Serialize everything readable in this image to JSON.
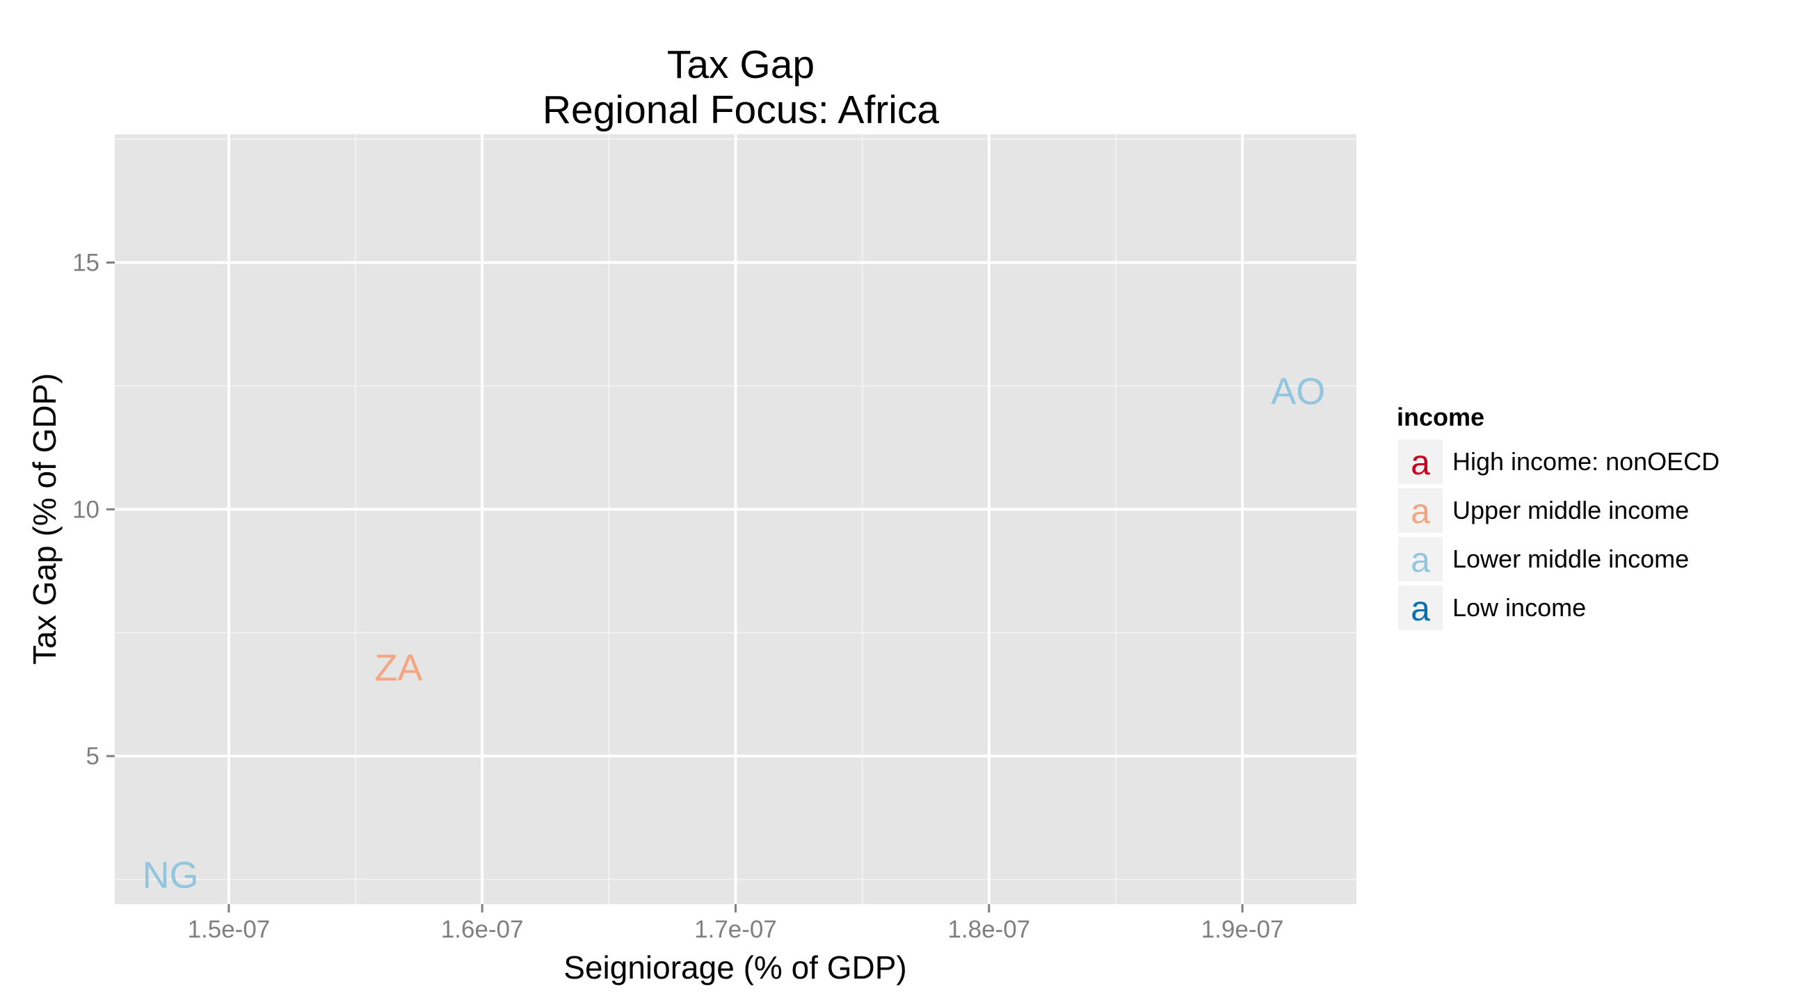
{
  "chart_data": {
    "type": "scatter",
    "title": "Tax Gap",
    "subtitle": "Regional Focus: Africa",
    "xlabel": "Seigniorage (% of GDP)",
    "ylabel": "Tax Gap (% of GDP)",
    "xlim": [
      1.455e-07,
      1.945e-07
    ],
    "ylim": [
      2.0,
      17.6
    ],
    "x_ticks": [
      1.5e-07,
      1.6e-07,
      1.7e-07,
      1.8e-07,
      1.9e-07
    ],
    "x_tick_labels": [
      "1.5e-07",
      "1.6e-07",
      "1.7e-07",
      "1.8e-07",
      "1.9e-07"
    ],
    "y_ticks": [
      5,
      10,
      15
    ],
    "y_tick_labels": [
      "5",
      "10",
      "15"
    ],
    "grid": true,
    "points": [
      {
        "label": "NG",
        "x": 1.477e-07,
        "y": 2.6,
        "income": "Lower middle income"
      },
      {
        "label": "ZA",
        "x": 1.567e-07,
        "y": 6.8,
        "income": "Upper middle income"
      },
      {
        "label": "AO",
        "x": 1.922e-07,
        "y": 12.4,
        "income": "Lower middle income"
      }
    ],
    "legend": {
      "title": "income",
      "position": "right",
      "key_glyph": "a",
      "entries": [
        {
          "name": "High income: nonOECD",
          "color": "#ca0020"
        },
        {
          "name": "Upper middle income",
          "color": "#f4a582"
        },
        {
          "name": "Lower middle income",
          "color": "#92c5de"
        },
        {
          "name": "Low income",
          "color": "#0571b0"
        }
      ]
    },
    "colors": {
      "panel_background": "#e5e5e5",
      "grid_major": "#ffffff",
      "grid_minor": "#f2f2f2",
      "tick_text": "#7f7f7f",
      "legend_key_background": "#f2f2f2"
    }
  }
}
